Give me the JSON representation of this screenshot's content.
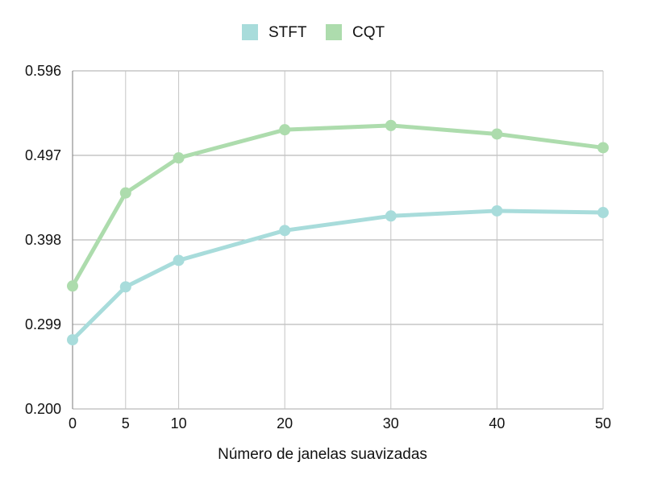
{
  "chart_data": {
    "type": "line",
    "title": "",
    "xlabel": "Número de janelas suavizadas",
    "ylabel": "",
    "x": [
      0,
      5,
      10,
      20,
      30,
      40,
      50
    ],
    "x_ticks": [
      0,
      5,
      10,
      20,
      30,
      40,
      50
    ],
    "x_tick_labels": [
      "0",
      "5",
      "10",
      "20",
      "30",
      "40",
      "50"
    ],
    "y_ticks": [
      0.2,
      0.299,
      0.398,
      0.497,
      0.596
    ],
    "y_tick_labels": [
      "0.200",
      "0.299",
      "0.398",
      "0.497",
      "0.596"
    ],
    "ylim": [
      0.2,
      0.596
    ],
    "xlim": [
      0,
      50
    ],
    "grid": true,
    "legend_position": "top-center",
    "series": [
      {
        "name": "STFT",
        "color": "#a8dcdb",
        "values": [
          0.281,
          0.343,
          0.374,
          0.409,
          0.426,
          0.432,
          0.43
        ]
      },
      {
        "name": "CQT",
        "color": "#addcad",
        "values": [
          0.344,
          0.453,
          0.494,
          0.527,
          0.532,
          0.522,
          0.506
        ]
      }
    ]
  }
}
